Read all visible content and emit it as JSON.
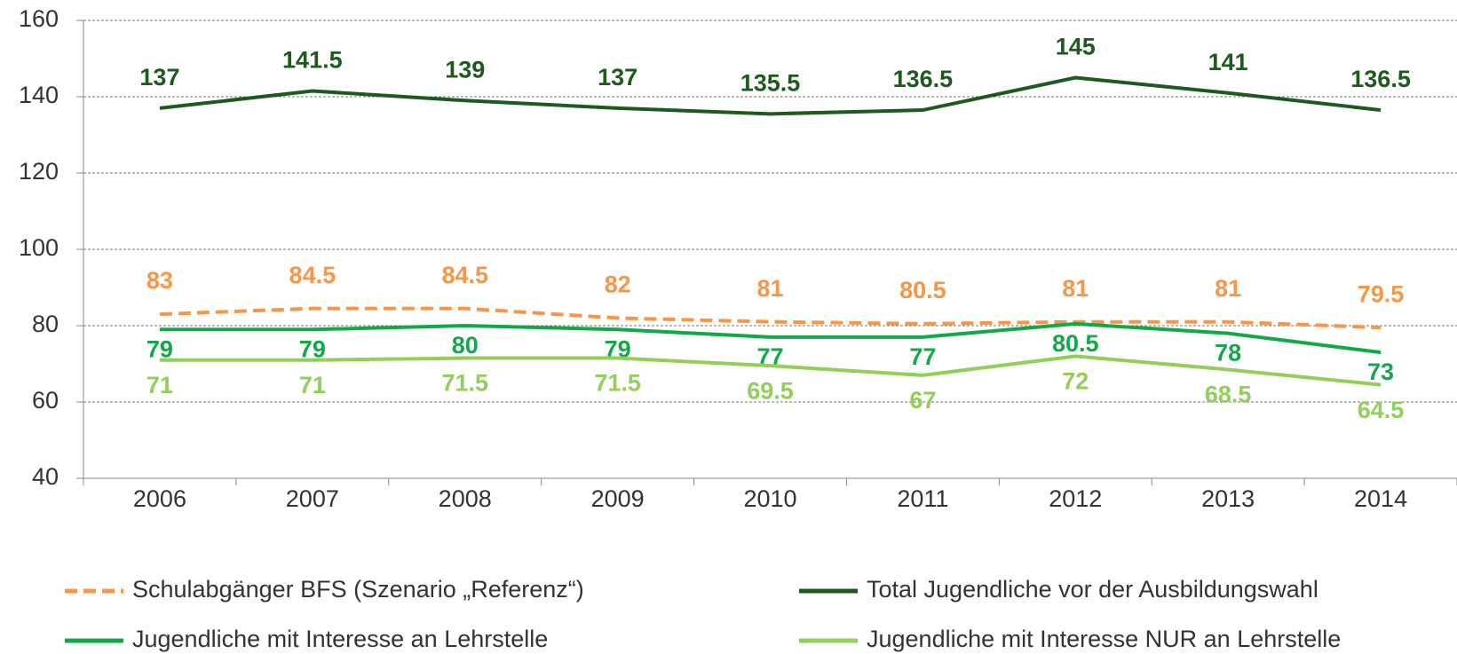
{
  "chart_data": {
    "type": "line",
    "categories": [
      "2006",
      "2007",
      "2008",
      "2009",
      "2010",
      "2011",
      "2012",
      "2013",
      "2014"
    ],
    "series": [
      {
        "name": "Schulabgänger BFS (Szenario „Referenz“)",
        "color": "#f79646",
        "dashed": true,
        "values": [
          83,
          84.5,
          84.5,
          82,
          81,
          80.5,
          81,
          81,
          79.5
        ]
      },
      {
        "name": "Total Jugendliche vor der Ausbildungswahl",
        "color": "#1e5a1e",
        "values": [
          137,
          141.5,
          139,
          137,
          135.5,
          136.5,
          145,
          141,
          136.5
        ]
      },
      {
        "name": "Jugendliche mit Interesse an Lehrstelle",
        "color": "#12a84a",
        "values": [
          79,
          79,
          80,
          79,
          77,
          77,
          80.5,
          78,
          73
        ]
      },
      {
        "name": "Jugendliche mit Interesse NUR an Lehrstelle",
        "color": "#92cf5a",
        "values": [
          71,
          71,
          71.5,
          71.5,
          69.5,
          67,
          72,
          68.5,
          64.5
        ]
      }
    ],
    "ylim": [
      40,
      160
    ],
    "yticks": [
      40,
      60,
      80,
      100,
      120,
      140,
      160
    ],
    "grid": true
  }
}
